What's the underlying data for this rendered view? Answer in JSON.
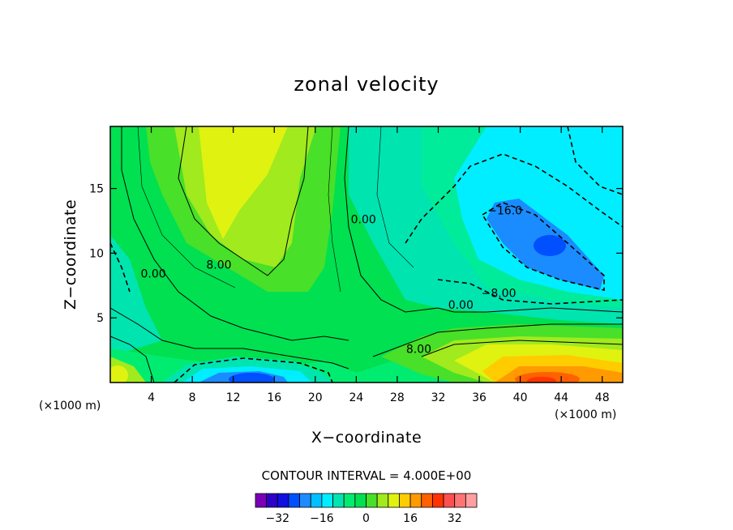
{
  "chart_data": {
    "type": "contour",
    "title": "zonal velocity",
    "xlabel": "X−coordinate",
    "ylabel": "Z−coordinate",
    "x_unit_left": "(×1000 m)",
    "x_unit_right": "(×1000 m)",
    "xlim": [
      0,
      50
    ],
    "ylim": [
      0,
      19.8
    ],
    "x_ticks": [
      4,
      8,
      12,
      16,
      20,
      24,
      28,
      32,
      36,
      40,
      44,
      48
    ],
    "y_ticks": [
      5,
      10,
      15
    ],
    "contour_interval": "CONTOUR INTERVAL = 4.000E+00",
    "contour_labels": [
      {
        "text": "0.00",
        "x": 4.2,
        "y": 8.1
      },
      {
        "text": "8.00",
        "x": 10.6,
        "y": 8.8
      },
      {
        "text": "0.00",
        "x": 24.7,
        "y": 12.3
      },
      {
        "text": "−16.0",
        "x": 38.5,
        "y": 13.0
      },
      {
        "text": "−8.00",
        "x": 37.9,
        "y": 6.6
      },
      {
        "text": "0.00",
        "x": 34.2,
        "y": 5.7
      },
      {
        "text": "8.00",
        "x": 30.1,
        "y": 2.3
      }
    ],
    "colorbar": {
      "colors": [
        "#7a00b8",
        "#2f00c8",
        "#1010e0",
        "#0050ff",
        "#1a8cff",
        "#00c0ff",
        "#00eeff",
        "#00e4b0",
        "#00ec70",
        "#00e050",
        "#48e028",
        "#a0ea1e",
        "#e0f210",
        "#ffcc00",
        "#ff9a00",
        "#ff6000",
        "#ff3400",
        "#ff5050",
        "#ff7575",
        "#ffa0a0"
      ],
      "tick_labels": [
        "−32",
        "−16",
        "0",
        "16",
        "32"
      ],
      "tick_values": [
        -32,
        -16,
        0,
        16,
        32
      ]
    }
  }
}
